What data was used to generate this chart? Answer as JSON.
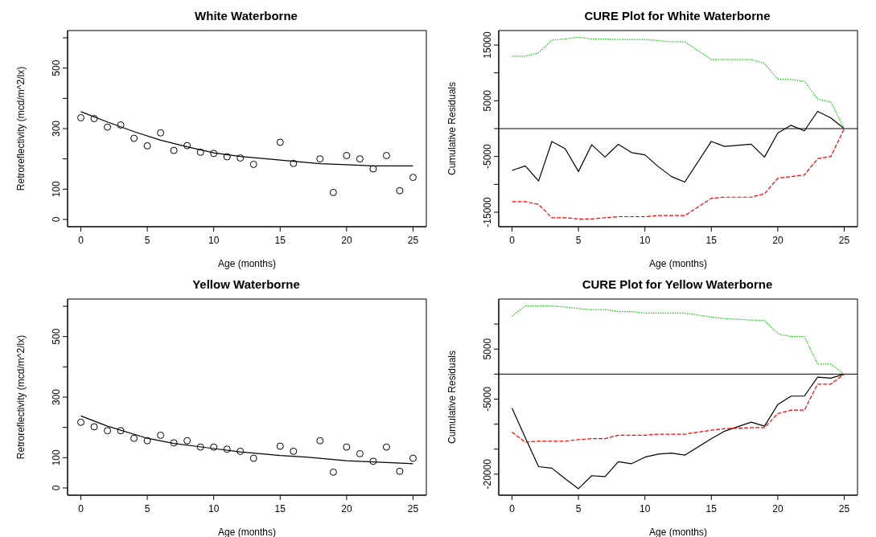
{
  "chart_data": [
    {
      "type": "scatter",
      "title": "White Waterborne",
      "xlabel": "Age (months)",
      "ylabel": "Retroreflectivity (mcd/m^2/lx)",
      "x": [
        0,
        1,
        2,
        3,
        4,
        5,
        6,
        7,
        8,
        9,
        10,
        11,
        12,
        13,
        15,
        16,
        18,
        19,
        20,
        21,
        22,
        23,
        24,
        25
      ],
      "xlim": [
        -1,
        26
      ],
      "xticks": [
        0,
        5,
        10,
        15,
        20,
        25
      ],
      "ylim": [
        -24,
        624
      ],
      "yticks": [
        0,
        100,
        {
          "value": 200,
          "label": null
        },
        300,
        {
          "value": 400,
          "label": null
        },
        500,
        {
          "value": 600,
          "label": null
        }
      ],
      "series": [
        {
          "marker": "circle",
          "color": "#000000",
          "values": [
            336,
            333,
            305,
            312,
            268,
            243,
            286,
            228,
            244,
            222,
            218,
            207,
            203,
            182,
            255,
            185,
            200,
            89,
            211,
            200,
            167,
            211,
            95,
            139
          ]
        },
        {
          "type": "line",
          "color": "#000000",
          "x": [
            0,
            2,
            4,
            6,
            8,
            10,
            12,
            14,
            16,
            18,
            20,
            22,
            25
          ],
          "values": [
            356,
            322,
            290,
            262,
            240,
            220,
            208,
            200,
            192,
            184,
            181,
            177,
            177
          ]
        }
      ]
    },
    {
      "type": "line",
      "title": "CURE Plot for White Waterborne",
      "xlabel": "Age (months)",
      "ylabel": "Cumulative Residuals",
      "x": [
        0,
        1,
        2,
        3,
        4,
        5,
        6,
        7,
        8,
        9,
        10,
        11,
        12,
        13,
        15,
        16,
        18,
        19,
        20,
        21,
        22,
        23,
        24,
        25
      ],
      "xlim": [
        -1,
        26
      ],
      "xticks": [
        0,
        5,
        10,
        15,
        20,
        25
      ],
      "ylim": [
        -17600,
        17600
      ],
      "yticks": [
        -15000,
        {
          "value": -10000,
          "label": null
        },
        -5000,
        {
          "value": 0,
          "label": null
        },
        5000,
        {
          "value": 10000,
          "label": null
        },
        15000
      ],
      "ref_lines": [
        {
          "axis": "y",
          "value": 0,
          "color": "#000000"
        }
      ],
      "series": [
        {
          "color": "#000000",
          "line_style": "solid",
          "values": [
            -7500,
            -6700,
            -9400,
            -2300,
            -3600,
            -7700,
            -2900,
            -5100,
            -2800,
            -4300,
            -4700,
            -6800,
            -8600,
            -9600,
            -2300,
            -3200,
            -2800,
            -5100,
            -800,
            600,
            -400,
            3100,
            1900,
            0
          ]
        },
        {
          "color": "#00cd00",
          "line_style": "dotted",
          "values": [
            13000,
            13000,
            13600,
            15900,
            16100,
            16400,
            16100,
            16100,
            16000,
            16000,
            16000,
            15800,
            15600,
            15600,
            12400,
            12400,
            12400,
            11700,
            8900,
            8800,
            8500,
            5300,
            4800,
            0
          ]
        },
        {
          "color": "#ff0000",
          "line_style": "dashed",
          "values": [
            -13100,
            -13100,
            -13600,
            -16000,
            -16000,
            -16200,
            -16200,
            -16000,
            -15800,
            -15800,
            -15800,
            -15600,
            -15600,
            -15600,
            -12500,
            -12300,
            -12300,
            -11700,
            -8900,
            -8600,
            -8300,
            -5400,
            -5000,
            0
          ]
        }
      ]
    },
    {
      "type": "scatter",
      "title": "Yellow Waterborne",
      "xlabel": "Age (months)",
      "ylabel": "Retroreflectivity (mcd/m^2/lx)",
      "x": [
        0,
        1,
        2,
        3,
        4,
        5,
        6,
        7,
        8,
        9,
        10,
        11,
        12,
        13,
        15,
        16,
        18,
        19,
        20,
        21,
        22,
        23,
        24,
        25
      ],
      "xlim": [
        -1,
        26
      ],
      "xticks": [
        0,
        5,
        10,
        15,
        20,
        25
      ],
      "ylim": [
        -24,
        624
      ],
      "yticks": [
        0,
        100,
        {
          "value": 200,
          "label": null
        },
        300,
        {
          "value": 400,
          "label": null
        },
        500,
        {
          "value": 600,
          "label": null
        }
      ],
      "series": [
        {
          "marker": "circle",
          "color": "#000000",
          "values": [
            217,
            202,
            189,
            189,
            164,
            156,
            174,
            149,
            156,
            135,
            135,
            128,
            121,
            98,
            138,
            121,
            156,
            52,
            135,
            113,
            88,
            135,
            55,
            98
          ]
        },
        {
          "type": "line",
          "color": "#000000",
          "x": [
            0,
            2,
            5,
            7,
            10,
            12,
            15,
            17,
            20,
            25
          ],
          "values": [
            238,
            204,
            164,
            147,
            130,
            119,
            107,
            102,
            90,
            80
          ]
        }
      ]
    },
    {
      "type": "line",
      "title": "CURE Plot for Yellow Waterborne",
      "xlabel": "Age (months)",
      "ylabel": "Cumulative Residuals",
      "x": [
        0,
        1,
        2,
        3,
        4,
        5,
        6,
        7,
        8,
        9,
        10,
        11,
        12,
        13,
        15,
        16,
        18,
        19,
        20,
        21,
        22,
        23,
        24,
        25
      ],
      "xlim": [
        -1,
        26
      ],
      "xticks": [
        0,
        5,
        10,
        15,
        20,
        25
      ],
      "ylim": [
        -24200,
        15000
      ],
      "yticks": [
        -20000,
        {
          "value": -15000,
          "label": null
        },
        {
          "value": -10000,
          "label": null
        },
        -5000,
        {
          "value": 0,
          "label": null
        },
        5000,
        {
          "value": 10000,
          "label": null
        }
      ],
      "ref_lines": [
        {
          "axis": "y",
          "value": 0,
          "color": "#000000"
        }
      ],
      "series": [
        {
          "color": "#000000",
          "line_style": "solid",
          "values": [
            -6800,
            -12700,
            -18500,
            -18800,
            -20900,
            -22900,
            -20300,
            -20500,
            -17500,
            -17900,
            -16600,
            -16000,
            -15800,
            -16200,
            -12900,
            -11400,
            -9600,
            -10400,
            -6100,
            -4400,
            -4400,
            -600,
            -800,
            0
          ]
        },
        {
          "color": "#00cd00",
          "line_style": "dotted",
          "values": [
            11600,
            13600,
            13600,
            13600,
            13400,
            13100,
            12900,
            12900,
            12500,
            12500,
            12200,
            12200,
            12200,
            12200,
            11400,
            11100,
            10800,
            10700,
            8100,
            7500,
            7500,
            2000,
            2000,
            0
          ]
        },
        {
          "color": "#ff0000",
          "line_style": "dashed",
          "values": [
            -11600,
            -13600,
            -13400,
            -13400,
            -13400,
            -13100,
            -12900,
            -12900,
            -12200,
            -12200,
            -12200,
            -12000,
            -12000,
            -12000,
            -11200,
            -10900,
            -10700,
            -10700,
            -7900,
            -7200,
            -7200,
            -2000,
            -2000,
            0
          ]
        }
      ]
    }
  ]
}
